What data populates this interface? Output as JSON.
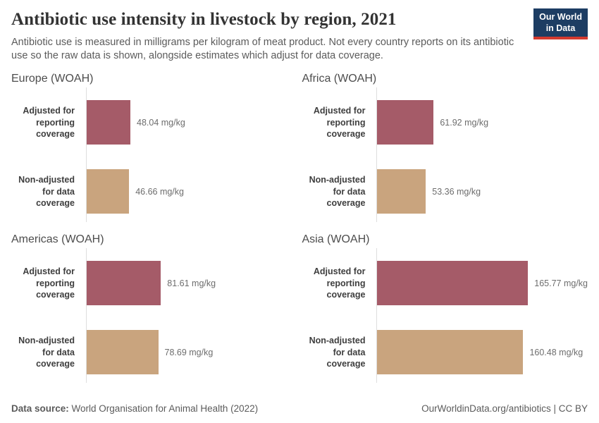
{
  "header": {
    "title": "Antibiotic use intensity in livestock by region, 2021",
    "subtitle": "Antibiotic use is measured in milligrams per kilogram of meat product. Not every country reports on its antibiotic use so the raw data is shown, alongside estimates which adjust for data coverage.",
    "logo": {
      "line1": "Our World",
      "line2": "in Data"
    }
  },
  "chart_data": {
    "type": "bar",
    "orientation": "horizontal",
    "unit": "mg/kg",
    "xlim": [
      0,
      170
    ],
    "grid": false,
    "legend": "none",
    "categories": [
      "Adjusted for reporting coverage",
      "Non-adjusted for data coverage"
    ],
    "series_colors": {
      "adjusted": "#a55b68",
      "non_adjusted": "#c9a47e"
    },
    "panels": [
      {
        "region": "Europe (WOAH)",
        "values": [
          48.04,
          46.66
        ],
        "value_labels": [
          "48.04 mg/kg",
          "46.66 mg/kg"
        ]
      },
      {
        "region": "Africa (WOAH)",
        "values": [
          61.92,
          53.36
        ],
        "value_labels": [
          "61.92 mg/kg",
          "53.36 mg/kg"
        ]
      },
      {
        "region": "Americas (WOAH)",
        "values": [
          81.61,
          78.69
        ],
        "value_labels": [
          "81.61 mg/kg",
          "78.69 mg/kg"
        ]
      },
      {
        "region": "Asia (WOAH)",
        "values": [
          165.77,
          160.48
        ],
        "value_labels": [
          "165.77 mg/kg",
          "160.48 mg/kg"
        ]
      }
    ]
  },
  "footer": {
    "datasource_label": "Data source:",
    "datasource_value": "World Organisation for Animal Health (2022)",
    "link": "OurWorldinData.org/antibiotics | CC BY"
  }
}
